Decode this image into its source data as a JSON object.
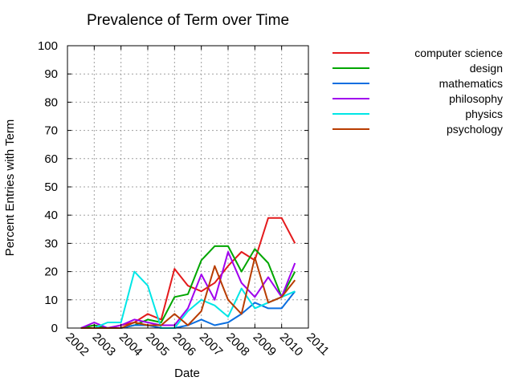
{
  "chart_data": {
    "type": "line",
    "title": "Prevalence of Term over Time",
    "xlabel": "Date",
    "ylabel": "Percent Entries with Term",
    "ylim": [
      0,
      100
    ],
    "xlim": [
      2002,
      2011
    ],
    "grid": true,
    "legend_position": "right",
    "y_ticks": [
      0,
      10,
      20,
      30,
      40,
      50,
      60,
      70,
      80,
      90,
      100
    ],
    "x_ticks": [
      "2002",
      "2003",
      "2004",
      "2005",
      "2006",
      "2007",
      "2008",
      "2009",
      "2010",
      "2011"
    ],
    "x": [
      2002.5,
      2003.0,
      2003.5,
      2004.0,
      2004.5,
      2005.0,
      2005.5,
      2006.0,
      2006.5,
      2007.0,
      2007.5,
      2008.0,
      2008.5,
      2009.0,
      2009.5,
      2010.0,
      2010.5
    ],
    "series": [
      {
        "name": "computer science",
        "color": "#e41a1c",
        "values": [
          0,
          1,
          0,
          1,
          2,
          5,
          3,
          21,
          15,
          13,
          16,
          22,
          27,
          24,
          39,
          39,
          30
        ]
      },
      {
        "name": "design",
        "color": "#00a600",
        "values": [
          0,
          1,
          0,
          0,
          1,
          3,
          2,
          11,
          12,
          24,
          29,
          29,
          20,
          28,
          23,
          11,
          20
        ]
      },
      {
        "name": "mathematics",
        "color": "#0a6ee0",
        "values": [
          0,
          0,
          0,
          0,
          1,
          1,
          0,
          0,
          1,
          3,
          1,
          2,
          5,
          9,
          7,
          7,
          13
        ]
      },
      {
        "name": "philosophy",
        "color": "#a000ee",
        "values": [
          0,
          2,
          0,
          1,
          3,
          2,
          1,
          1,
          7,
          19,
          10,
          27,
          16,
          11,
          18,
          11,
          23
        ]
      },
      {
        "name": "physics",
        "color": "#00e6e6",
        "values": [
          0,
          0,
          2,
          2,
          20,
          15,
          0,
          0,
          6,
          10,
          8,
          4,
          14,
          7,
          9,
          11,
          13
        ]
      },
      {
        "name": "psychology",
        "color": "#b83c00",
        "values": [
          0,
          0,
          0,
          0,
          2,
          1,
          1,
          5,
          1,
          6,
          22,
          10,
          5,
          25,
          9,
          11,
          17
        ]
      }
    ]
  }
}
